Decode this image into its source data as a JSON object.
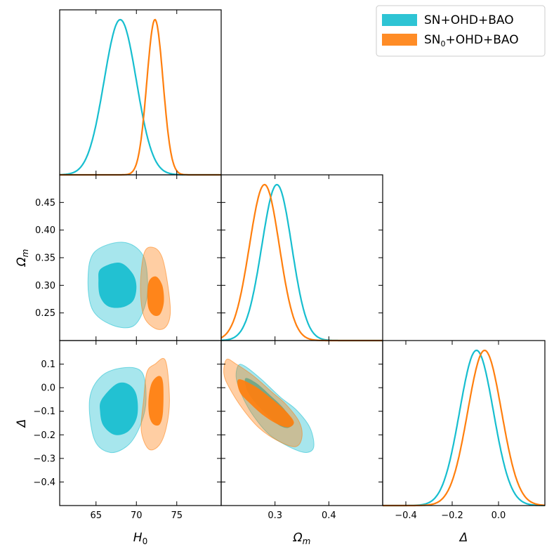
{
  "chart_data": {
    "type": "corner-plot",
    "parameters": [
      "H0",
      "Omega_m",
      "Delta"
    ],
    "axis_labels": {
      "x": {
        "H0": "H",
        "H0_sub": "0",
        "Omega_m": "Ω",
        "Omega_m_sub": "m",
        "Delta": "Δ"
      },
      "y": {
        "Omega_m": "Ω",
        "Omega_m_sub": "m",
        "Delta": "Δ"
      }
    },
    "ranges": {
      "H0": [
        60.5,
        80.5
      ],
      "Omega_m": [
        0.2,
        0.5
      ],
      "Delta": [
        -0.5,
        0.2
      ]
    },
    "ticks": {
      "H0": [
        65,
        70,
        75
      ],
      "Omega_m_x": [
        0.3,
        0.4
      ],
      "Delta_x": [
        -0.4,
        -0.2,
        0.0
      ],
      "Omega_m_y": [
        0.25,
        0.3,
        0.35,
        0.4,
        0.45
      ],
      "Delta_y": [
        0.1,
        0.0,
        -0.1,
        -0.2,
        -0.3,
        -0.4
      ]
    },
    "tick_labels": {
      "H0": [
        "65",
        "70",
        "75"
      ],
      "Omega_m_x": [
        "0.3",
        "0.4"
      ],
      "Delta_x": [
        "−0.4",
        "−0.2",
        "0.0"
      ],
      "Omega_m_y": [
        "0.25",
        "0.30",
        "0.35",
        "0.40",
        "0.45"
      ],
      "Delta_y": [
        "0.1",
        "0.0",
        "−0.1",
        "−0.2",
        "−0.3",
        "−0.4"
      ]
    },
    "series": [
      {
        "name": "SN+OHD+BAO",
        "legend_main": "SN+OHD+BAO",
        "legend_sub": "",
        "legend_tail": "",
        "color": "#17becf",
        "marginals": {
          "H0": {
            "mean": 68.0,
            "sigma": 2.0
          },
          "Omega_m": {
            "mean": 0.301,
            "sigma": 0.028,
            "skew": 0.6
          },
          "Delta": {
            "mean": -0.095,
            "sigma": 0.073
          }
        },
        "contours": {
          "H0_Omega_m": {
            "c95": [
              [
                64.8,
                0.36
              ],
              [
                68.3,
                0.378
              ],
              [
                70.8,
                0.355
              ],
              [
                71.4,
                0.3
              ],
              [
                71.0,
                0.26
              ],
              [
                69.6,
                0.226
              ],
              [
                67.0,
                0.228
              ],
              [
                64.6,
                0.255
              ],
              [
                64.0,
                0.31
              ]
            ],
            "c68": [
              [
                65.6,
                0.33
              ],
              [
                67.9,
                0.341
              ],
              [
                69.5,
                0.322
              ],
              [
                70.0,
                0.298
              ],
              [
                69.6,
                0.272
              ],
              [
                68.2,
                0.26
              ],
              [
                66.5,
                0.262
              ],
              [
                65.5,
                0.28
              ],
              [
                65.3,
                0.308
              ]
            ]
          },
          "H0_Delta": {
            "c95": [
              [
                64.2,
                -0.05
              ],
              [
                65.7,
                0.05
              ],
              [
                68.5,
                0.085
              ],
              [
                70.7,
                0.065
              ],
              [
                71.2,
                -0.05
              ],
              [
                70.6,
                -0.15
              ],
              [
                69.1,
                -0.24
              ],
              [
                66.8,
                -0.275
              ],
              [
                64.8,
                -0.22
              ]
            ],
            "c68": [
              [
                65.7,
                -0.05
              ],
              [
                67.5,
                0.015
              ],
              [
                69.0,
                0.015
              ],
              [
                70.0,
                -0.03
              ],
              [
                70.1,
                -0.12
              ],
              [
                69.0,
                -0.185
              ],
              [
                67.3,
                -0.2
              ],
              [
                65.9,
                -0.16
              ],
              [
                65.5,
                -0.1
              ]
            ]
          },
          "Omega_m_Delta": {
            "c95": [
              [
                0.232,
                0.095
              ],
              [
                0.245,
                0.09
              ],
              [
                0.275,
                0.035
              ],
              [
                0.31,
                -0.04
              ],
              [
                0.34,
                -0.095
              ],
              [
                0.365,
                -0.17
              ],
              [
                0.372,
                -0.25
              ],
              [
                0.358,
                -0.275
              ],
              [
                0.33,
                -0.255
              ],
              [
                0.29,
                -0.2
              ],
              [
                0.26,
                -0.12
              ],
              [
                0.24,
                -0.04
              ],
              [
                0.228,
                0.04
              ]
            ],
            "c68": [
              [
                0.245,
                0.04
              ],
              [
                0.265,
                0.02
              ],
              [
                0.29,
                -0.03
              ],
              [
                0.315,
                -0.085
              ],
              [
                0.333,
                -0.145
              ],
              [
                0.325,
                -0.17
              ],
              [
                0.308,
                -0.16
              ],
              [
                0.285,
                -0.115
              ],
              [
                0.262,
                -0.06
              ],
              [
                0.248,
                -0.01
              ]
            ]
          }
        }
      },
      {
        "name": "SN0+OHD+BAO",
        "legend_main": "SN",
        "legend_sub": "0",
        "legend_tail": "+OHD+BAO",
        "color": "#ff7f0e",
        "marginals": {
          "H0": {
            "mean": 72.3,
            "sigma": 1.0
          },
          "Omega_m": {
            "mean": 0.278,
            "sigma": 0.028,
            "skew": 0.6
          },
          "Delta": {
            "mean": -0.06,
            "sigma": 0.073
          }
        },
        "contours": {
          "H0_Omega_m": {
            "c95": [
              [
                71.0,
                0.36
              ],
              [
                72.2,
                0.368
              ],
              [
                73.2,
                0.35
              ],
              [
                73.9,
                0.3
              ],
              [
                74.2,
                0.25
              ],
              [
                73.6,
                0.224
              ],
              [
                72.3,
                0.222
              ],
              [
                70.9,
                0.245
              ],
              [
                70.5,
                0.3
              ]
            ],
            "c68": [
              [
                71.5,
                0.305
              ],
              [
                72.4,
                0.316
              ],
              [
                73.2,
                0.3
              ],
              [
                73.4,
                0.27
              ],
              [
                72.9,
                0.247
              ],
              [
                72.0,
                0.247
              ],
              [
                71.4,
                0.265
              ]
            ]
          },
          "H0_Delta": {
            "c95": [
              [
                70.9,
                -0.05
              ],
              [
                71.3,
                0.065
              ],
              [
                72.3,
                0.1
              ],
              [
                73.6,
                0.115
              ],
              [
                74.1,
                -0.05
              ],
              [
                73.7,
                -0.17
              ],
              [
                72.8,
                -0.245
              ],
              [
                71.5,
                -0.26
              ],
              [
                70.6,
                -0.18
              ]
            ],
            "c68": [
              [
                71.5,
                -0.05
              ],
              [
                71.9,
                0.02
              ],
              [
                72.8,
                0.05
              ],
              [
                73.3,
                0.02
              ],
              [
                73.3,
                -0.1
              ],
              [
                72.9,
                -0.155
              ],
              [
                72.1,
                -0.155
              ],
              [
                71.6,
                -0.12
              ]
            ]
          },
          "Omega_m_Delta": {
            "c95": [
              [
                0.21,
                0.12
              ],
              [
                0.228,
                0.1
              ],
              [
                0.26,
                0.05
              ],
              [
                0.295,
                -0.02
              ],
              [
                0.32,
                -0.07
              ],
              [
                0.345,
                -0.145
              ],
              [
                0.35,
                -0.21
              ],
              [
                0.338,
                -0.25
              ],
              [
                0.305,
                -0.225
              ],
              [
                0.27,
                -0.17
              ],
              [
                0.24,
                -0.09
              ],
              [
                0.215,
                0.0
              ],
              [
                0.205,
                0.06
              ]
            ],
            "c68": [
              [
                0.232,
                0.035
              ],
              [
                0.26,
                0.01
              ],
              [
                0.29,
                -0.04
              ],
              [
                0.318,
                -0.095
              ],
              [
                0.335,
                -0.145
              ],
              [
                0.325,
                -0.168
              ],
              [
                0.305,
                -0.155
              ],
              [
                0.28,
                -0.12
              ],
              [
                0.255,
                -0.07
              ],
              [
                0.235,
                -0.02
              ]
            ]
          }
        }
      }
    ],
    "grid": false,
    "legend_position": "top-right"
  }
}
